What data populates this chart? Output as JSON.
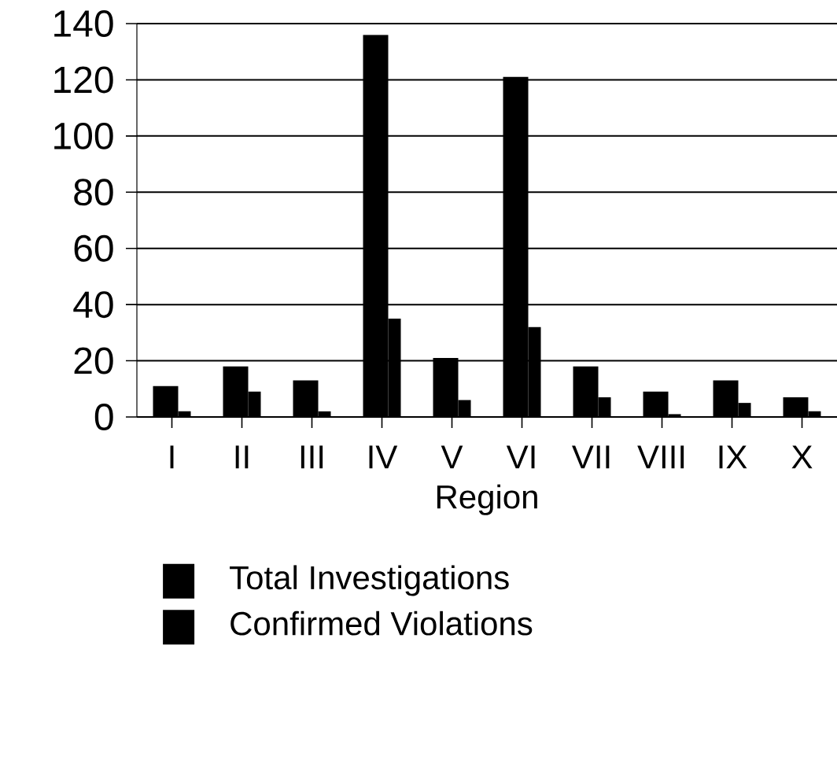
{
  "chart_data": {
    "type": "bar",
    "xlabel": "Region",
    "categories": [
      "I",
      "II",
      "III",
      "IV",
      "V",
      "VI",
      "VII",
      "VIII",
      "IX",
      "X"
    ],
    "series": [
      {
        "name": "Total Investigations",
        "color": "#000000",
        "values": [
          11,
          18,
          13,
          136,
          21,
          121,
          18,
          9,
          13,
          7
        ]
      },
      {
        "name": "Confirmed Violations",
        "color": "#000000",
        "values": [
          2,
          9,
          2,
          35,
          6,
          32,
          7,
          1,
          5,
          2
        ]
      }
    ],
    "ylim": [
      0,
      140
    ],
    "yticks": [
      0,
      20,
      40,
      60,
      80,
      100,
      120,
      140
    ],
    "grid": "y",
    "legend": "bottom"
  }
}
